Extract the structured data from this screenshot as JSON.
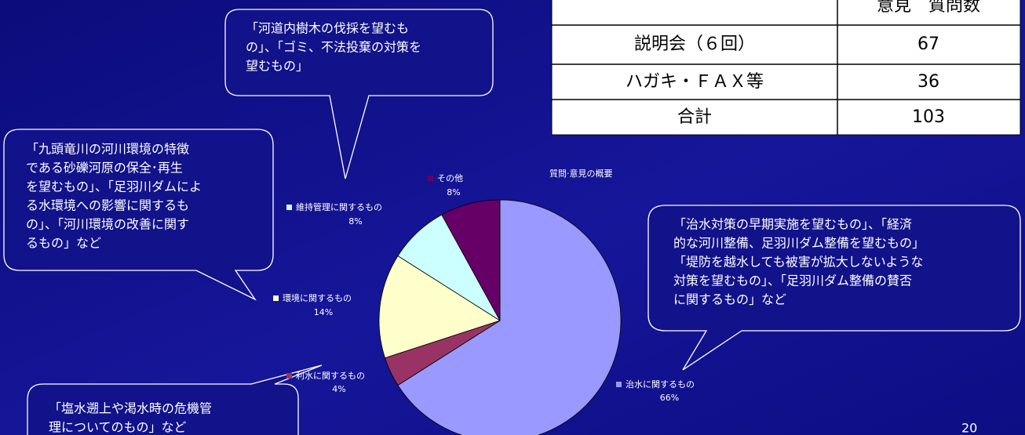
{
  "chart_data": {
    "type": "pie",
    "title": "質問·意見の概要",
    "categories": [
      "治水に関するもの",
      "利水に関するもの",
      "環境に関するもの",
      "維持管理に関するもの",
      "その他"
    ],
    "values": [
      66,
      4,
      14,
      8,
      8
    ],
    "value_labels": [
      "66%",
      "4%",
      "14%",
      "8%",
      "8%"
    ],
    "colors": [
      "#9999ff",
      "#993366",
      "#ffffcc",
      "#ccffff",
      "#660066"
    ]
  },
  "table": {
    "header": [
      "",
      "意見　質問数"
    ],
    "rows": [
      [
        "説明会（６回）",
        "67"
      ],
      [
        "ハガキ・ＦＡＸ等",
        "36"
      ],
      [
        "合計",
        "103"
      ]
    ]
  },
  "callouts": [
    [
      "「河道内樹木の伐採を望むも",
      "の」、「ゴミ、不法投棄の対策を",
      "望むもの」"
    ],
    [
      "「九頭竜川の河川環境の特徴",
      "である砂礫河原の保全･再生",
      "を望むもの」、「足羽川ダムによ",
      "る水環境への影響に関するも",
      "の」、「河川環境の改善に関す",
      "るもの」など"
    ],
    [
      "「治水対策の早期実施を望むもの」、「経済",
      "的な河川整備、足羽川ダム整備を望むもの」",
      "「堤防を越水しても被害が拡大しないような",
      "対策を望むもの」、「足羽川ダム整備の賛否",
      "に関するもの」など"
    ],
    [
      "「塩水遡上や渇水時の危機管",
      "理についてのもの」など"
    ]
  ],
  "page_number": "20"
}
